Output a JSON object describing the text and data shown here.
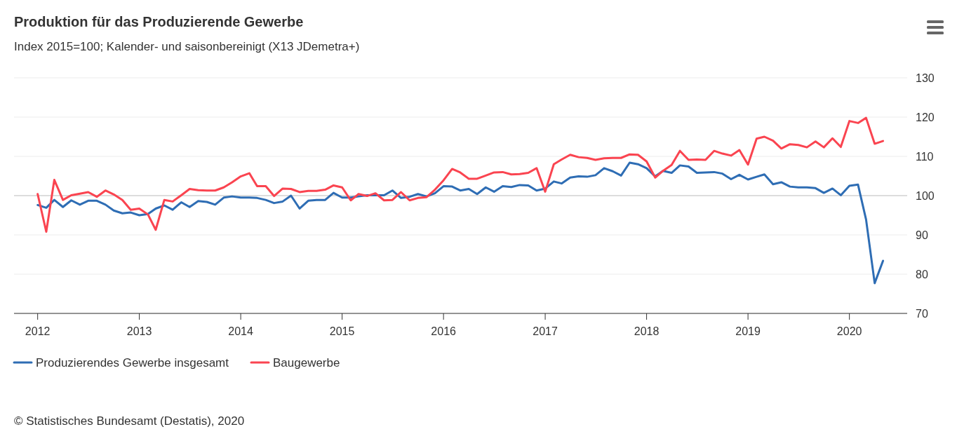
{
  "chart_data": {
    "type": "line",
    "title": "Produktion für das Produzierende Gewerbe",
    "subtitle": "Index 2015=100; Kalender- und saisonbereinigt (X13 JDemetra+)",
    "x": [
      "2012-01",
      "2012-02",
      "2012-03",
      "2012-04",
      "2012-05",
      "2012-06",
      "2012-07",
      "2012-08",
      "2012-09",
      "2012-10",
      "2012-11",
      "2012-12",
      "2013-01",
      "2013-02",
      "2013-03",
      "2013-04",
      "2013-05",
      "2013-06",
      "2013-07",
      "2013-08",
      "2013-09",
      "2013-10",
      "2013-11",
      "2013-12",
      "2014-01",
      "2014-02",
      "2014-03",
      "2014-04",
      "2014-05",
      "2014-06",
      "2014-07",
      "2014-08",
      "2014-09",
      "2014-10",
      "2014-11",
      "2014-12",
      "2015-01",
      "2015-02",
      "2015-03",
      "2015-04",
      "2015-05",
      "2015-06",
      "2015-07",
      "2015-08",
      "2015-09",
      "2015-10",
      "2015-11",
      "2015-12",
      "2016-01",
      "2016-02",
      "2016-03",
      "2016-04",
      "2016-05",
      "2016-06",
      "2016-07",
      "2016-08",
      "2016-09",
      "2016-10",
      "2016-11",
      "2016-12",
      "2017-01",
      "2017-02",
      "2017-03",
      "2017-04",
      "2017-05",
      "2017-06",
      "2017-07",
      "2017-08",
      "2017-09",
      "2017-10",
      "2017-11",
      "2017-12",
      "2018-01",
      "2018-02",
      "2018-03",
      "2018-04",
      "2018-05",
      "2018-06",
      "2018-07",
      "2018-08",
      "2018-09",
      "2018-10",
      "2018-11",
      "2018-12",
      "2019-01",
      "2019-02",
      "2019-03",
      "2019-04",
      "2019-05",
      "2019-06",
      "2019-07",
      "2019-08",
      "2019-09",
      "2019-10",
      "2019-11",
      "2019-12",
      "2020-01",
      "2020-02",
      "2020-03",
      "2020-04",
      "2020-05"
    ],
    "series": [
      {
        "name": "Produzierendes Gewerbe insgesamt",
        "color": "#2e6db4",
        "values": [
          97.6,
          96.9,
          98.9,
          97.1,
          98.8,
          97.7,
          98.7,
          98.7,
          97.7,
          96.2,
          95.5,
          95.7,
          95.0,
          95.3,
          96.7,
          97.5,
          96.4,
          98.3,
          97.1,
          98.6,
          98.4,
          97.7,
          99.5,
          99.8,
          99.5,
          99.5,
          99.4,
          98.9,
          98.1,
          98.5,
          100.0,
          96.7,
          98.7,
          98.9,
          98.9,
          100.7,
          99.5,
          99.5,
          99.8,
          100.1,
          100.1,
          100.1,
          101.3,
          99.4,
          99.7,
          100.4,
          99.8,
          100.6,
          102.4,
          102.3,
          101.3,
          101.7,
          100.4,
          102.1,
          101.0,
          102.4,
          102.2,
          102.7,
          102.6,
          101.3,
          101.8,
          103.6,
          103.1,
          104.6,
          104.9,
          104.8,
          105.2,
          107.0,
          106.2,
          105.1,
          108.4,
          108.0,
          107.0,
          104.9,
          106.3,
          105.8,
          107.7,
          107.4,
          105.8,
          105.9,
          106.0,
          105.6,
          104.2,
          105.3,
          104.1,
          104.8,
          105.4,
          102.9,
          103.4,
          102.3,
          102.1,
          102.1,
          101.9,
          100.7,
          101.8,
          100.1,
          102.5,
          102.8,
          93.9,
          77.7,
          83.4
        ]
      },
      {
        "name": "Baugewerbe",
        "color": "#fa4450",
        "values": [
          100.4,
          90.8,
          104.0,
          98.9,
          100.1,
          100.5,
          100.9,
          99.7,
          101.3,
          100.3,
          98.9,
          96.4,
          96.7,
          95.2,
          91.3,
          98.9,
          98.5,
          100.1,
          101.7,
          101.4,
          101.3,
          101.3,
          102.1,
          103.4,
          104.9,
          105.7,
          102.4,
          102.4,
          99.9,
          101.8,
          101.7,
          100.9,
          101.2,
          101.2,
          101.5,
          102.6,
          102.1,
          98.8,
          100.4,
          99.9,
          100.6,
          98.8,
          98.9,
          100.9,
          98.8,
          99.4,
          99.6,
          101.5,
          103.9,
          106.8,
          105.9,
          104.3,
          104.3,
          105.1,
          105.9,
          106.0,
          105.4,
          105.5,
          105.8,
          107.0,
          101.0,
          108.0,
          109.2,
          110.4,
          109.8,
          109.6,
          109.1,
          109.5,
          109.6,
          109.6,
          110.5,
          110.4,
          108.7,
          104.6,
          106.3,
          107.8,
          111.4,
          109.1,
          109.2,
          109.1,
          111.4,
          110.7,
          110.2,
          111.6,
          107.9,
          114.5,
          115.0,
          114.0,
          112.0,
          113.1,
          112.9,
          112.3,
          113.8,
          112.3,
          114.6,
          112.4,
          119.0,
          118.5,
          119.8,
          113.2,
          113.9
        ]
      }
    ],
    "xlim": [
      "2011-10-08",
      "2020-07-27"
    ],
    "xticks": [
      {
        "value": "2012",
        "label": "2012"
      },
      {
        "value": "2013",
        "label": "2013"
      },
      {
        "value": "2014",
        "label": "2014"
      },
      {
        "value": "2015",
        "label": "2015"
      },
      {
        "value": "2016",
        "label": "2016"
      },
      {
        "value": "2017",
        "label": "2017"
      },
      {
        "value": "2018",
        "label": "2018"
      },
      {
        "value": "2019",
        "label": "2019"
      },
      {
        "value": "2020",
        "label": "2020"
      }
    ],
    "ylim": [
      70,
      130
    ],
    "yticks": [
      70,
      80,
      90,
      100,
      110,
      120,
      130
    ],
    "grid": "y",
    "ref_lines": [
      {
        "axis": "y",
        "value": 100,
        "color": "#d4d4d4"
      }
    ],
    "legend": "bottom",
    "annotations": [
      "© Statistisches Bundesamt (Destatis), 2020"
    ]
  }
}
